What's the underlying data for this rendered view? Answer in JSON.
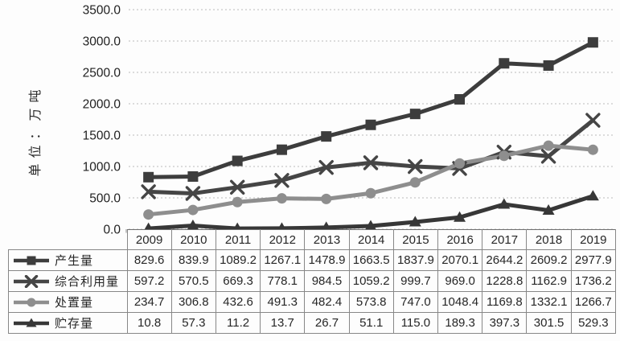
{
  "chart_data": {
    "type": "line",
    "ylabel": "单位：万吨",
    "ylim": [
      0,
      3500
    ],
    "ytick_step": 500,
    "ytick_labels": [
      "0.0",
      "500.0",
      "1000.0",
      "1500.0",
      "2000.0",
      "2500.0",
      "3000.0",
      "3500.0"
    ],
    "grid": "horizontal-dashed",
    "legend_position": "left-of-table-rows",
    "categories": [
      "2009",
      "2010",
      "2011",
      "2012",
      "2013",
      "2014",
      "2015",
      "2016",
      "2017",
      "2018",
      "2019"
    ],
    "series": [
      {
        "name": "产生量",
        "marker": "square",
        "color": "#3d3d3d",
        "values": [
          829.6,
          839.9,
          1089.2,
          1267.1,
          1478.9,
          1663.5,
          1837.9,
          2070.1,
          2644.2,
          2609.2,
          2977.9
        ]
      },
      {
        "name": "综合利用量",
        "marker": "x",
        "color": "#454545",
        "values": [
          597.2,
          570.5,
          669.3,
          778.1,
          984.5,
          1059.2,
          999.7,
          969.0,
          1228.8,
          1162.9,
          1736.2
        ]
      },
      {
        "name": "处置量",
        "marker": "circle",
        "color": "#8e8e8e",
        "values": [
          234.7,
          306.8,
          432.6,
          491.3,
          482.4,
          573.8,
          747.0,
          1048.4,
          1169.8,
          1332.1,
          1266.7
        ]
      },
      {
        "name": "贮存量",
        "marker": "triangle",
        "color": "#373737",
        "values": [
          10.8,
          57.3,
          11.2,
          13.7,
          26.7,
          51.1,
          115.0,
          189.3,
          397.3,
          301.5,
          529.3
        ]
      }
    ]
  },
  "colors": {
    "gridline": "#bcbcbc",
    "axis_tick": "#8a8a8a",
    "table_border": "#878787",
    "text": "#262626"
  }
}
